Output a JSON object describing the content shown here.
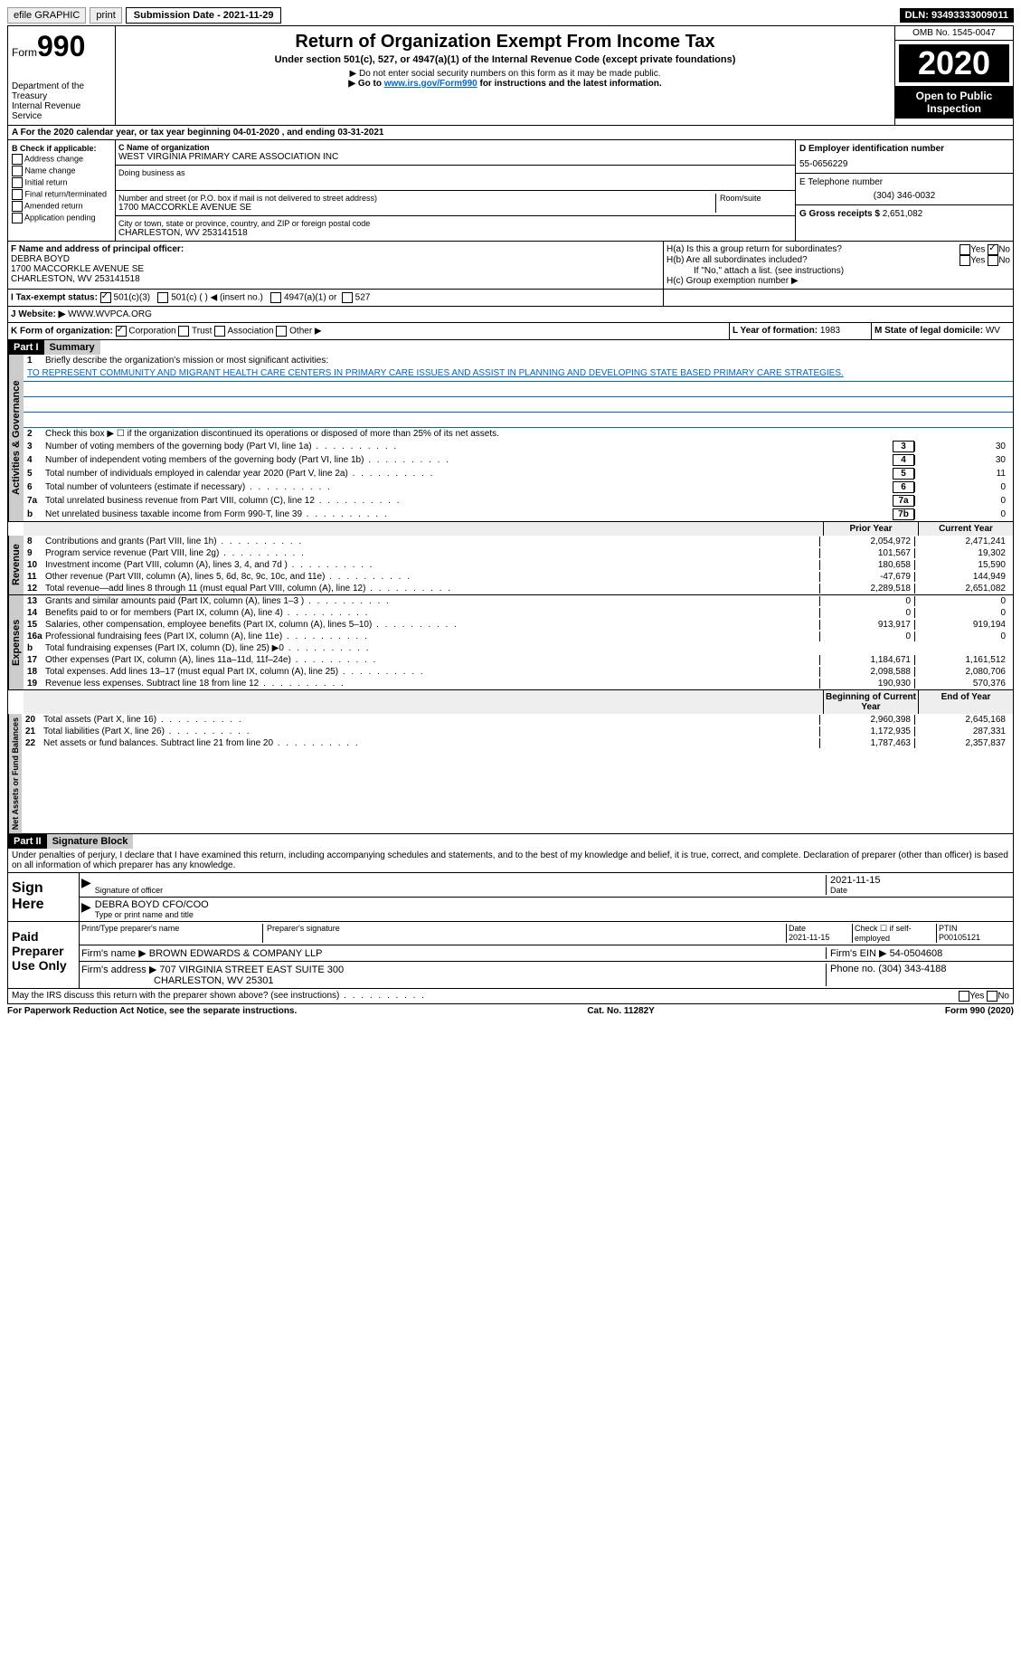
{
  "topbar": {
    "efile": "efile GRAPHIC",
    "print": "print",
    "submission_label": "Submission Date - ",
    "submission_date": "2021-11-29",
    "dln_label": "DLN: ",
    "dln": "93493333009011"
  },
  "header": {
    "form_prefix": "Form",
    "form_num": "990",
    "dept1": "Department of the Treasury",
    "dept2": "Internal Revenue Service",
    "title": "Return of Organization Exempt From Income Tax",
    "subtitle": "Under section 501(c), 527, or 4947(a)(1) of the Internal Revenue Code (except private foundations)",
    "warn": "▶ Do not enter social security numbers on this form as it may be made public.",
    "goto_pre": "▶ Go to ",
    "goto_link": "www.irs.gov/Form990",
    "goto_post": " for instructions and the latest information.",
    "omb": "OMB No. 1545-0047",
    "year": "2020",
    "open": "Open to Public Inspection"
  },
  "row_a": "A For the 2020 calendar year, or tax year beginning 04-01-2020    , and ending 03-31-2021",
  "box_b": {
    "label": "B Check if applicable:",
    "items": [
      "Address change",
      "Name change",
      "Initial return",
      "Final return/terminated",
      "Amended return",
      "Application pending"
    ]
  },
  "box_c": {
    "name_label": "C Name of organization",
    "name": "WEST VIRGINIA PRIMARY CARE ASSOCIATION INC",
    "dba_label": "Doing business as",
    "addr_label": "Number and street (or P.O. box if mail is not delivered to street address)",
    "room_label": "Room/suite",
    "addr": "1700 MACCORKLE AVENUE SE",
    "city_label": "City or town, state or province, country, and ZIP or foreign postal code",
    "city": "CHARLESTON, WV  253141518"
  },
  "box_d": {
    "label": "D Employer identification number",
    "val": "55-0656229"
  },
  "box_e": {
    "label": "E Telephone number",
    "val": "(304) 346-0032"
  },
  "box_g": {
    "label": "G Gross receipts $",
    "val": "2,651,082"
  },
  "box_f": {
    "label": "F  Name and address of principal officer:",
    "name": "DEBRA BOYD",
    "addr1": "1700 MACCORKLE AVENUE SE",
    "addr2": "CHARLESTON, WV  253141518"
  },
  "box_h": {
    "a": "H(a)  Is this a group return for subordinates?",
    "b": "H(b)  Are all subordinates included?",
    "note": "If \"No,\" attach a list. (see instructions)",
    "c": "H(c)  Group exemption number ▶"
  },
  "box_i": {
    "label": "I  Tax-exempt status:",
    "opt1": "501(c)(3)",
    "opt2": "501(c) (   ) ◀ (insert no.)",
    "opt3": "4947(a)(1) or",
    "opt4": "527"
  },
  "box_j": {
    "label": "J  Website: ▶",
    "val": "WWW.WVPCA.ORG"
  },
  "box_k": {
    "label": "K Form of organization:",
    "opts": [
      "Corporation",
      "Trust",
      "Association",
      "Other ▶"
    ]
  },
  "box_l": {
    "label": "L Year of formation:",
    "val": "1983"
  },
  "box_m": {
    "label": "M State of legal domicile:",
    "val": "WV"
  },
  "part1": {
    "hdr": "Part I",
    "title": "Summary"
  },
  "p1": {
    "l1_label": "Briefly describe the organization's mission or most significant activities:",
    "l1": "TO REPRESENT COMMUNITY AND MIGRANT HEALTH CARE CENTERS IN PRIMARY CARE ISSUES AND ASSIST IN PLANNING AND DEVELOPING STATE BASED PRIMARY CARE STRATEGIES.",
    "l2": "Check this box ▶ ☐  if the organization discontinued its operations or disposed of more than 25% of its net assets.",
    "rows": [
      {
        "n": "3",
        "t": "Number of voting members of the governing body (Part VI, line 1a)",
        "b": "3",
        "v": "30"
      },
      {
        "n": "4",
        "t": "Number of independent voting members of the governing body (Part VI, line 1b)",
        "b": "4",
        "v": "30"
      },
      {
        "n": "5",
        "t": "Total number of individuals employed in calendar year 2020 (Part V, line 2a)",
        "b": "5",
        "v": "11"
      },
      {
        "n": "6",
        "t": "Total number of volunteers (estimate if necessary)",
        "b": "6",
        "v": "0"
      },
      {
        "n": "7a",
        "t": "Total unrelated business revenue from Part VIII, column (C), line 12",
        "b": "7a",
        "v": "0"
      },
      {
        "n": "b",
        "t": "Net unrelated business taxable income from Form 990-T, line 39",
        "b": "7b",
        "v": "0"
      }
    ],
    "col_prior": "Prior Year",
    "col_curr": "Current Year",
    "rev": [
      {
        "n": "8",
        "t": "Contributions and grants (Part VIII, line 1h)",
        "p": "2,054,972",
        "c": "2,471,241"
      },
      {
        "n": "9",
        "t": "Program service revenue (Part VIII, line 2g)",
        "p": "101,567",
        "c": "19,302"
      },
      {
        "n": "10",
        "t": "Investment income (Part VIII, column (A), lines 3, 4, and 7d )",
        "p": "180,658",
        "c": "15,590"
      },
      {
        "n": "11",
        "t": "Other revenue (Part VIII, column (A), lines 5, 6d, 8c, 9c, 10c, and 11e)",
        "p": "-47,679",
        "c": "144,949"
      },
      {
        "n": "12",
        "t": "Total revenue—add lines 8 through 11 (must equal Part VIII, column (A), line 12)",
        "p": "2,289,518",
        "c": "2,651,082"
      }
    ],
    "exp": [
      {
        "n": "13",
        "t": "Grants and similar amounts paid (Part IX, column (A), lines 1–3 )",
        "p": "0",
        "c": "0"
      },
      {
        "n": "14",
        "t": "Benefits paid to or for members (Part IX, column (A), line 4)",
        "p": "0",
        "c": "0"
      },
      {
        "n": "15",
        "t": "Salaries, other compensation, employee benefits (Part IX, column (A), lines 5–10)",
        "p": "913,917",
        "c": "919,194"
      },
      {
        "n": "16a",
        "t": "Professional fundraising fees (Part IX, column (A), line 11e)",
        "p": "0",
        "c": "0"
      },
      {
        "n": "b",
        "t": "Total fundraising expenses (Part IX, column (D), line 25) ▶0",
        "p": "",
        "c": "",
        "shade": true
      },
      {
        "n": "17",
        "t": "Other expenses (Part IX, column (A), lines 11a–11d, 11f–24e)",
        "p": "1,184,671",
        "c": "1,161,512"
      },
      {
        "n": "18",
        "t": "Total expenses. Add lines 13–17 (must equal Part IX, column (A), line 25)",
        "p": "2,098,588",
        "c": "2,080,706"
      },
      {
        "n": "19",
        "t": "Revenue less expenses. Subtract line 18 from line 12",
        "p": "190,930",
        "c": "570,376"
      }
    ],
    "col_beg": "Beginning of Current Year",
    "col_end": "End of Year",
    "net": [
      {
        "n": "20",
        "t": "Total assets (Part X, line 16)",
        "p": "2,960,398",
        "c": "2,645,168"
      },
      {
        "n": "21",
        "t": "Total liabilities (Part X, line 26)",
        "p": "1,172,935",
        "c": "287,331"
      },
      {
        "n": "22",
        "t": "Net assets or fund balances. Subtract line 21 from line 20",
        "p": "1,787,463",
        "c": "2,357,837"
      }
    ],
    "tabs": {
      "gov": "Activities & Governance",
      "rev": "Revenue",
      "exp": "Expenses",
      "net": "Net Assets or Fund Balances"
    }
  },
  "part2": {
    "hdr": "Part II",
    "title": "Signature Block"
  },
  "sig": {
    "decl": "Under penalties of perjury, I declare that I have examined this return, including accompanying schedules and statements, and to the best of my knowledge and belief, it is true, correct, and complete. Declaration of preparer (other than officer) is based on all information of which preparer has any knowledge.",
    "sign_here": "Sign Here",
    "sig_officer": "Signature of officer",
    "date": "Date",
    "date_val": "2021-11-15",
    "name": "DEBRA BOYD CFO/COO",
    "name_label": "Type or print name and title",
    "paid": "Paid Preparer Use Only",
    "pt_name": "Print/Type preparer's name",
    "pt_sig": "Preparer's signature",
    "pt_date": "Date",
    "pt_date_val": "2021-11-15",
    "pt_check": "Check ☐ if self-employed",
    "ptin_label": "PTIN",
    "ptin": "P00105121",
    "firm_name_label": "Firm's name    ▶",
    "firm_name": "BROWN EDWARDS & COMPANY LLP",
    "firm_ein_label": "Firm's EIN ▶",
    "firm_ein": "54-0504608",
    "firm_addr_label": "Firm's address ▶",
    "firm_addr1": "707 VIRGINIA STREET EAST SUITE 300",
    "firm_addr2": "CHARLESTON, WV  25301",
    "phone_label": "Phone no.",
    "phone": "(304) 343-4188",
    "discuss": "May the IRS discuss this return with the preparer shown above? (see instructions)",
    "yes": "Yes",
    "no": "No"
  },
  "footer": {
    "pra": "For Paperwork Reduction Act Notice, see the separate instructions.",
    "cat": "Cat. No. 11282Y",
    "form": "Form 990 (2020)"
  },
  "colors": {
    "link": "#0066cc",
    "shade": "#cccccc",
    "black": "#000000"
  }
}
